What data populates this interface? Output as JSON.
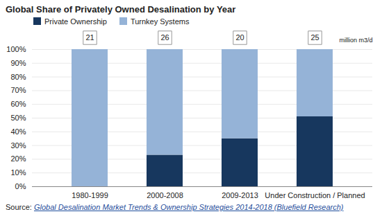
{
  "chart_data": {
    "type": "bar",
    "title": "Global Share of Privately Owned Desalination by Year",
    "categories": [
      "1980-1999",
      "2000-2008",
      "2009-2013",
      "Under Construction / Planned"
    ],
    "series": [
      {
        "name": "Private Ownership",
        "color": "#17375e",
        "values": [
          0,
          23,
          35,
          51
        ]
      },
      {
        "name": "Turnkey Systems",
        "color": "#95b3d7",
        "values": [
          100,
          77,
          65,
          49
        ]
      }
    ],
    "stacked": true,
    "ylim": [
      0,
      100
    ],
    "yticks": [
      {
        "value": 0,
        "label": "0%"
      },
      {
        "value": 10,
        "label": "10%"
      },
      {
        "value": 20,
        "label": "20%"
      },
      {
        "value": 30,
        "label": "30%"
      },
      {
        "value": 40,
        "label": "40%"
      },
      {
        "value": 50,
        "label": "50%"
      },
      {
        "value": 60,
        "label": "60%"
      },
      {
        "value": 70,
        "label": "70%"
      },
      {
        "value": 80,
        "label": "80%"
      },
      {
        "value": 90,
        "label": "90%"
      },
      {
        "value": 100,
        "label": "100%"
      }
    ],
    "grid": true,
    "legend": "top",
    "totals": [
      21,
      26,
      20,
      25
    ],
    "totals_label": "million m3/d",
    "source_prefix": "Source:",
    "source_text": "Global Desalination Market Trends & Ownership Strategies 2014-2018 (Bluefield Research)"
  }
}
